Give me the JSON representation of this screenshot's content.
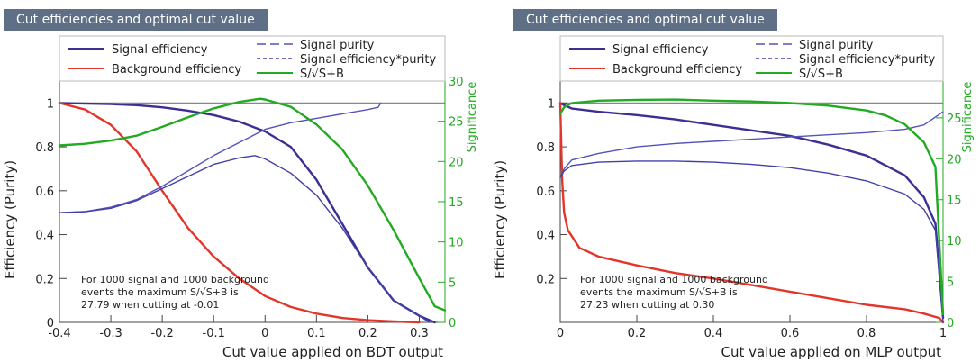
{
  "colors": {
    "signal_eff": "#3b3092",
    "background_eff": "#e3362a",
    "signal_purity": "#5454b8",
    "sig_eff_purity": "#4040a8",
    "significance": "#22aa22",
    "title_bg": "#5f6f86"
  },
  "chart_data": [
    {
      "type": "line",
      "title": "Cut efficiencies and optimal cut value",
      "xlabel": "Cut value applied on BDT output",
      "ylabel": "Efficiency (Purity)",
      "y2label": "Significance",
      "xlim": [
        -0.4,
        0.35
      ],
      "ylim": [
        0,
        1.1
      ],
      "y2lim": [
        0,
        30
      ],
      "xticks": [
        "-0.4",
        "-0.3",
        "-0.2",
        "-0.1",
        "0",
        "0.1",
        "0.2",
        "0.3"
      ],
      "xtick_values": [
        -0.4,
        -0.3,
        -0.2,
        -0.1,
        0,
        0.1,
        0.2,
        0.3
      ],
      "yticks": [
        "0",
        "0.2",
        "0.4",
        "0.6",
        "0.8",
        "1"
      ],
      "ytick_values": [
        0,
        0.2,
        0.4,
        0.6,
        0.8,
        1.0
      ],
      "y2ticks": [
        "0",
        "5",
        "10",
        "15",
        "20",
        "25",
        "30"
      ],
      "y2tick_values": [
        0,
        5,
        10,
        15,
        20,
        25,
        30
      ],
      "reference_line": 1.0,
      "legend": {
        "position": "top",
        "entries": [
          "Signal efficiency",
          "Background efficiency",
          "Signal purity",
          "Signal efficiency*purity",
          "S/√S+B"
        ]
      },
      "annotation": [
        "For 1000 signal and 1000 background",
        "events the maximum S/√S+B is",
        "27.79 when cutting at -0.01"
      ],
      "series": [
        {
          "name": "Signal efficiency",
          "axis": "left",
          "style": "signal_eff",
          "x": [
            -0.4,
            -0.3,
            -0.25,
            -0.2,
            -0.15,
            -0.1,
            -0.05,
            0.0,
            0.05,
            0.1,
            0.15,
            0.2,
            0.25,
            0.3,
            0.33
          ],
          "y": [
            1.0,
            0.995,
            0.99,
            0.98,
            0.965,
            0.945,
            0.915,
            0.87,
            0.8,
            0.65,
            0.45,
            0.25,
            0.1,
            0.03,
            0.0
          ]
        },
        {
          "name": "Background efficiency",
          "axis": "left",
          "style": "background_eff",
          "x": [
            -0.4,
            -0.35,
            -0.3,
            -0.25,
            -0.2,
            -0.15,
            -0.1,
            -0.05,
            0.0,
            0.05,
            0.1,
            0.15,
            0.2,
            0.25,
            0.3
          ],
          "y": [
            1.0,
            0.97,
            0.9,
            0.78,
            0.6,
            0.43,
            0.3,
            0.2,
            0.12,
            0.07,
            0.04,
            0.02,
            0.01,
            0.004,
            0.0
          ]
        },
        {
          "name": "Signal purity",
          "axis": "left",
          "style": "signal_purity",
          "x": [
            -0.4,
            -0.35,
            -0.3,
            -0.25,
            -0.2,
            -0.15,
            -0.1,
            -0.05,
            0.0,
            0.05,
            0.1,
            0.15,
            0.2,
            0.22,
            0.225
          ],
          "y": [
            0.5,
            0.505,
            0.525,
            0.56,
            0.62,
            0.69,
            0.76,
            0.82,
            0.88,
            0.91,
            0.93,
            0.95,
            0.97,
            0.98,
            1.0
          ]
        },
        {
          "name": "Signal efficiency*purity",
          "axis": "left",
          "style": "sig_eff_purity",
          "x": [
            -0.4,
            -0.35,
            -0.3,
            -0.25,
            -0.2,
            -0.15,
            -0.1,
            -0.05,
            -0.02,
            0.0,
            0.05,
            0.1,
            0.15,
            0.2,
            0.25,
            0.3,
            0.32
          ],
          "y": [
            0.5,
            0.505,
            0.52,
            0.555,
            0.61,
            0.665,
            0.72,
            0.75,
            0.76,
            0.745,
            0.68,
            0.58,
            0.43,
            0.25,
            0.1,
            0.03,
            0.0
          ]
        },
        {
          "name": "S/√S+B",
          "axis": "right",
          "style": "significance",
          "x": [
            -0.4,
            -0.35,
            -0.3,
            -0.25,
            -0.2,
            -0.15,
            -0.1,
            -0.05,
            -0.01,
            0.0,
            0.05,
            0.1,
            0.15,
            0.2,
            0.25,
            0.3,
            0.33,
            0.35
          ],
          "y": [
            22.0,
            22.2,
            22.6,
            23.2,
            24.3,
            25.5,
            26.6,
            27.4,
            27.79,
            27.7,
            26.8,
            24.6,
            21.5,
            17.0,
            11.5,
            5.5,
            2.0,
            1.5
          ]
        }
      ]
    },
    {
      "type": "line",
      "title": "Cut efficiencies and optimal cut value",
      "xlabel": "Cut value applied on MLP output",
      "ylabel": "Efficiency (Purity)",
      "y2label": "Significance",
      "xlim": [
        0,
        1
      ],
      "ylim": [
        0,
        1.1
      ],
      "y2lim": [
        0,
        29.5
      ],
      "xticks": [
        "0",
        "0.2",
        "0.4",
        "0.6",
        "0.8",
        "1"
      ],
      "xtick_values": [
        0,
        0.2,
        0.4,
        0.6,
        0.8,
        1.0
      ],
      "yticks": [
        "0.2",
        "0.4",
        "0.6",
        "0.8",
        "1"
      ],
      "ytick_values": [
        0.2,
        0.4,
        0.6,
        0.8,
        1.0
      ],
      "y2ticks": [
        "0",
        "5",
        "10",
        "15",
        "20",
        "25"
      ],
      "y2tick_values": [
        0,
        5,
        10,
        15,
        20,
        25
      ],
      "reference_line": 1.0,
      "legend": {
        "position": "top",
        "entries": [
          "Signal efficiency",
          "Background efficiency",
          "Signal purity",
          "Signal efficiency*purity",
          "S/√S+B"
        ]
      },
      "annotation": [
        "For 1000 signal and 1000 background",
        "events the maximum S/√S+B is",
        "27.23 when cutting at  0.30"
      ],
      "series": [
        {
          "name": "Signal efficiency",
          "axis": "left",
          "style": "signal_eff",
          "x": [
            0.0,
            0.01,
            0.03,
            0.1,
            0.2,
            0.3,
            0.4,
            0.5,
            0.6,
            0.7,
            0.8,
            0.9,
            0.95,
            0.98,
            1.0
          ],
          "y": [
            1.0,
            0.99,
            0.975,
            0.96,
            0.945,
            0.925,
            0.9,
            0.875,
            0.85,
            0.81,
            0.76,
            0.67,
            0.57,
            0.45,
            0.02
          ]
        },
        {
          "name": "Background efficiency",
          "axis": "left",
          "style": "background_eff",
          "x": [
            0.0,
            0.005,
            0.01,
            0.02,
            0.05,
            0.1,
            0.2,
            0.3,
            0.4,
            0.5,
            0.6,
            0.7,
            0.8,
            0.9,
            0.95,
            0.99,
            1.0
          ],
          "y": [
            1.0,
            0.65,
            0.5,
            0.42,
            0.34,
            0.3,
            0.26,
            0.225,
            0.2,
            0.17,
            0.14,
            0.11,
            0.08,
            0.06,
            0.04,
            0.02,
            0.0
          ]
        },
        {
          "name": "Signal purity",
          "axis": "left",
          "style": "signal_purity",
          "x": [
            0.0,
            0.01,
            0.03,
            0.1,
            0.2,
            0.3,
            0.4,
            0.5,
            0.6,
            0.7,
            0.8,
            0.9,
            0.95,
            1.0
          ],
          "y": [
            0.66,
            0.7,
            0.74,
            0.77,
            0.8,
            0.815,
            0.825,
            0.835,
            0.845,
            0.855,
            0.865,
            0.88,
            0.9,
            0.96
          ]
        },
        {
          "name": "Signal efficiency*purity",
          "axis": "left",
          "style": "sig_eff_purity",
          "x": [
            0.0,
            0.01,
            0.03,
            0.1,
            0.2,
            0.3,
            0.4,
            0.5,
            0.6,
            0.7,
            0.8,
            0.9,
            0.95,
            0.98,
            1.0
          ],
          "y": [
            0.66,
            0.69,
            0.715,
            0.73,
            0.735,
            0.735,
            0.73,
            0.72,
            0.705,
            0.68,
            0.645,
            0.585,
            0.515,
            0.42,
            0.0
          ]
        },
        {
          "name": "S/√S+B",
          "axis": "right",
          "style": "significance",
          "x": [
            0.0,
            0.01,
            0.03,
            0.1,
            0.2,
            0.3,
            0.4,
            0.5,
            0.6,
            0.7,
            0.8,
            0.85,
            0.9,
            0.95,
            0.98,
            1.0
          ],
          "y": [
            25.5,
            26.3,
            26.8,
            27.1,
            27.2,
            27.23,
            27.1,
            27.0,
            26.8,
            26.5,
            25.9,
            25.3,
            24.2,
            22.0,
            19.0,
            1.0
          ]
        }
      ]
    }
  ]
}
